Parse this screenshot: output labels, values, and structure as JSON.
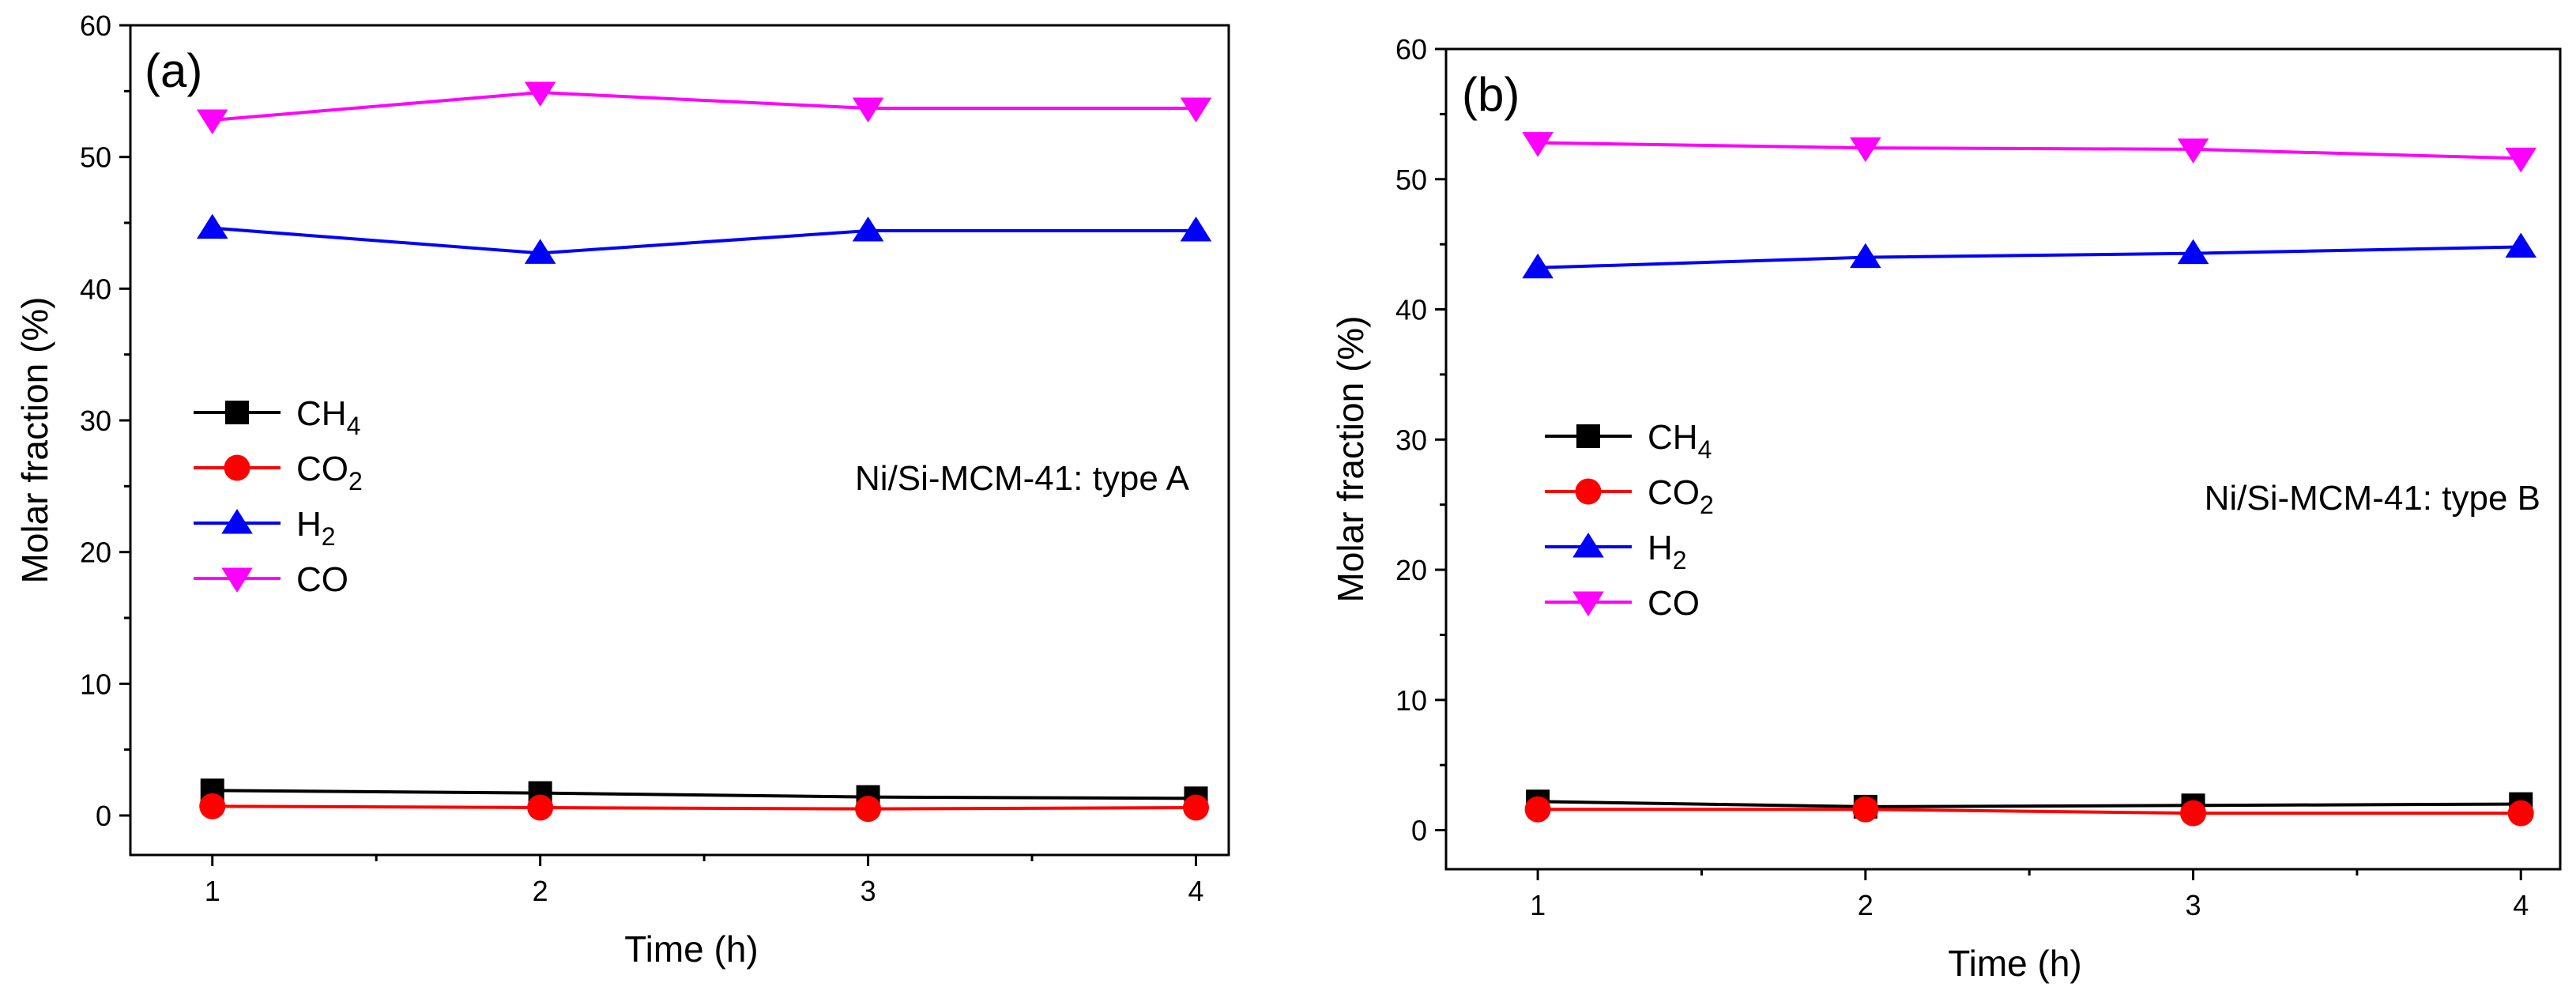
{
  "chart_data": [
    {
      "type": "line",
      "panel_label": "(a)",
      "annotation": "Ni/Si-MCM-41: type A",
      "xlabel": "Time (h)",
      "ylabel": "Molar fraction (%)",
      "x": [
        1,
        2,
        3,
        4
      ],
      "xlim": [
        0.75,
        4.1
      ],
      "ylim": [
        -3,
        60
      ],
      "xticks": [
        1,
        2,
        3,
        4
      ],
      "yticks": [
        0,
        10,
        20,
        30,
        40,
        50,
        60
      ],
      "legend_placement": "center-left",
      "series": [
        {
          "name": "CH",
          "sub": "4",
          "color": "#000000",
          "marker": "square",
          "values": [
            1.9,
            1.7,
            1.4,
            1.3
          ]
        },
        {
          "name": "CO",
          "sub": "2",
          "color": "#ff0000",
          "marker": "circle",
          "values": [
            0.7,
            0.6,
            0.5,
            0.6
          ]
        },
        {
          "name": "H",
          "sub": "2",
          "color": "#0000ff",
          "marker": "triangle-up",
          "values": [
            44.6,
            42.7,
            44.4,
            44.4
          ]
        },
        {
          "name": "CO",
          "sub": "",
          "color": "#ff00ff",
          "marker": "triangle-down",
          "values": [
            52.8,
            54.9,
            53.7,
            53.7
          ]
        }
      ]
    },
    {
      "type": "line",
      "panel_label": "(b)",
      "annotation": "Ni/Si-MCM-41: type B",
      "xlabel": "Time (h)",
      "ylabel": "Molar fraction (%)",
      "x": [
        1,
        2,
        3,
        4
      ],
      "xlim": [
        0.72,
        4.12
      ],
      "ylim": [
        -3,
        60
      ],
      "xticks": [
        1,
        2,
        3,
        4
      ],
      "yticks": [
        0,
        10,
        20,
        30,
        40,
        50,
        60
      ],
      "legend_placement": "center-left",
      "series": [
        {
          "name": "CH",
          "sub": "4",
          "color": "#000000",
          "marker": "square",
          "values": [
            2.2,
            1.8,
            1.9,
            2.0
          ]
        },
        {
          "name": "CO",
          "sub": "2",
          "color": "#ff0000",
          "marker": "circle",
          "values": [
            1.6,
            1.6,
            1.3,
            1.3
          ]
        },
        {
          "name": "H",
          "sub": "2",
          "color": "#0000ff",
          "marker": "triangle-up",
          "values": [
            43.2,
            44.0,
            44.3,
            44.8
          ]
        },
        {
          "name": "CO",
          "sub": "",
          "color": "#ff00ff",
          "marker": "triangle-down",
          "values": [
            52.8,
            52.4,
            52.3,
            51.6
          ]
        }
      ]
    }
  ]
}
